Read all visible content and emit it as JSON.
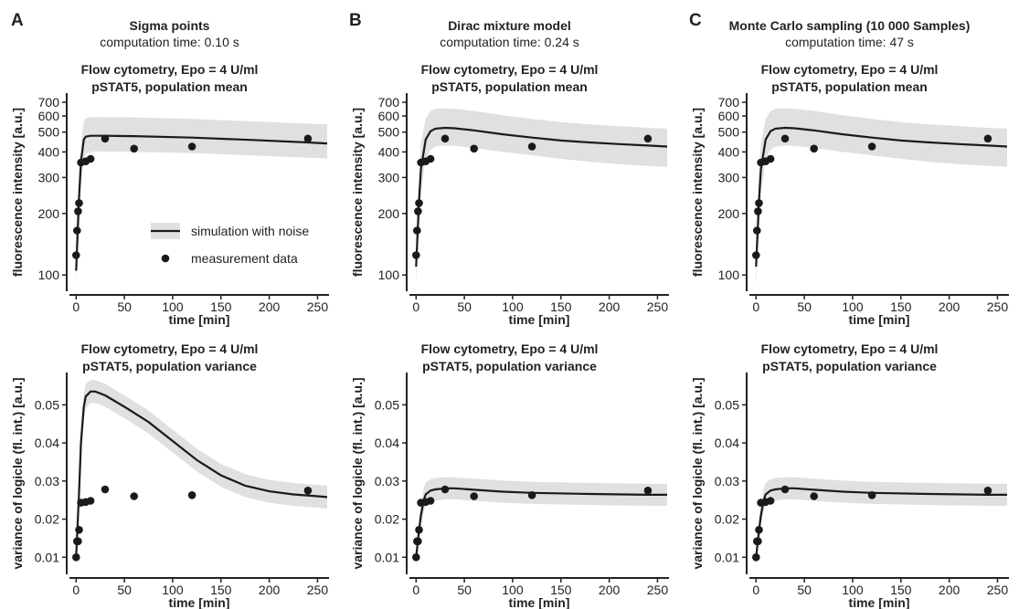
{
  "columns": [
    {
      "letter": "A",
      "title": "Sigma points",
      "subtitle": "computation time: 0.10 s"
    },
    {
      "letter": "B",
      "title": "Dirac mixture model",
      "subtitle": "computation time: 0.24 s"
    },
    {
      "letter": "C",
      "title": "Monte Carlo sampling (10 000 Samples)",
      "subtitle": "computation time: 47 s"
    }
  ],
  "legend": {
    "line_label": "simulation with noise",
    "dots_label": "measurement data"
  },
  "colors": {
    "line": "#1a1a1a",
    "band": "#e0e0e2",
    "points": "#1a1a1a"
  },
  "chart_data": [
    {
      "id": "A-mean",
      "type": "line",
      "title_lines": [
        "Flow cytometry, Epo = 4 U/ml",
        "pSTAT5, population mean"
      ],
      "xlabel": "time [min]",
      "ylabel": "fluorescence intensity [a.u.]",
      "yscale": "log",
      "xlim": [
        -5,
        260
      ],
      "ylim": [
        85,
        760
      ],
      "xticks": [
        0,
        50,
        100,
        150,
        200,
        250
      ],
      "yticks": [
        100,
        200,
        300,
        400,
        500,
        600,
        700
      ],
      "series": [
        {
          "kind": "band",
          "x": [
            0,
            3,
            5,
            8,
            10,
            15,
            20,
            30,
            60,
            120,
            180,
            240,
            260
          ],
          "lower": [
            90,
            175,
            270,
            370,
            392,
            400,
            402,
            402,
            400,
            395,
            385,
            375,
            372
          ],
          "upper": [
            160,
            300,
            430,
            560,
            585,
            590,
            592,
            592,
            590,
            580,
            565,
            550,
            545
          ]
        },
        {
          "kind": "line",
          "x": [
            0,
            3,
            5,
            8,
            10,
            15,
            20,
            30,
            60,
            120,
            180,
            240,
            260
          ],
          "y": [
            105,
            240,
            360,
            460,
            475,
            480,
            480,
            480,
            478,
            470,
            458,
            445,
            440
          ]
        },
        {
          "kind": "points",
          "x": [
            0,
            1,
            2,
            3,
            5,
            10,
            15,
            30,
            60,
            120,
            240
          ],
          "y": [
            125,
            165,
            205,
            225,
            355,
            360,
            370,
            465,
            415,
            425,
            465
          ]
        }
      ]
    },
    {
      "id": "B-mean",
      "type": "line",
      "title_lines": [
        "Flow cytometry, Epo = 4 U/ml",
        "pSTAT5, population mean"
      ],
      "xlabel": "time [min]",
      "ylabel": "fluorescence intensity [a.u.]",
      "yscale": "log",
      "xlim": [
        -5,
        260
      ],
      "ylim": [
        85,
        760
      ],
      "xticks": [
        0,
        50,
        100,
        150,
        200,
        250
      ],
      "yticks": [
        100,
        200,
        300,
        400,
        500,
        600,
        700
      ],
      "series": [
        {
          "kind": "band",
          "x": [
            0,
            3,
            5,
            10,
            15,
            20,
            30,
            40,
            60,
            90,
            120,
            150,
            180,
            210,
            240,
            260
          ],
          "lower": [
            90,
            170,
            250,
            370,
            410,
            425,
            430,
            428,
            418,
            400,
            385,
            370,
            358,
            348,
            342,
            338
          ],
          "upper": [
            140,
            320,
            440,
            580,
            635,
            650,
            655,
            650,
            635,
            605,
            580,
            560,
            545,
            535,
            525,
            520
          ]
        },
        {
          "kind": "line",
          "x": [
            0,
            3,
            5,
            10,
            15,
            20,
            30,
            40,
            60,
            90,
            120,
            150,
            180,
            210,
            240,
            260
          ],
          "y": [
            110,
            230,
            330,
            460,
            505,
            520,
            525,
            522,
            510,
            488,
            470,
            455,
            445,
            437,
            430,
            425
          ]
        },
        {
          "kind": "points",
          "x": [
            0,
            1,
            2,
            3,
            5,
            10,
            15,
            30,
            60,
            120,
            240
          ],
          "y": [
            125,
            165,
            205,
            225,
            355,
            360,
            370,
            465,
            415,
            425,
            465
          ]
        }
      ]
    },
    {
      "id": "C-mean",
      "type": "line",
      "title_lines": [
        "Flow cytometry, Epo = 4 U/ml",
        "pSTAT5, population mean"
      ],
      "xlabel": "time [min]",
      "ylabel": "fluorescence intensity [a.u.]",
      "yscale": "log",
      "xlim": [
        -5,
        260
      ],
      "ylim": [
        85,
        760
      ],
      "xticks": [
        0,
        50,
        100,
        150,
        200,
        250
      ],
      "yticks": [
        100,
        200,
        300,
        400,
        500,
        600,
        700
      ],
      "series": [
        {
          "kind": "band",
          "x": [
            0,
            3,
            5,
            10,
            15,
            20,
            30,
            40,
            60,
            90,
            120,
            150,
            180,
            210,
            240,
            260
          ],
          "lower": [
            90,
            170,
            250,
            370,
            410,
            425,
            430,
            428,
            418,
            400,
            385,
            370,
            358,
            348,
            342,
            338
          ],
          "upper": [
            140,
            320,
            440,
            580,
            635,
            650,
            655,
            650,
            635,
            605,
            580,
            560,
            545,
            535,
            525,
            520
          ]
        },
        {
          "kind": "line",
          "x": [
            0,
            3,
            5,
            10,
            15,
            20,
            30,
            40,
            60,
            90,
            120,
            150,
            180,
            210,
            240,
            260
          ],
          "y": [
            110,
            230,
            330,
            460,
            505,
            520,
            525,
            522,
            510,
            488,
            470,
            455,
            445,
            437,
            430,
            425
          ]
        },
        {
          "kind": "points",
          "x": [
            0,
            1,
            2,
            3,
            5,
            10,
            15,
            30,
            60,
            120,
            240
          ],
          "y": [
            125,
            165,
            205,
            225,
            355,
            360,
            370,
            465,
            415,
            425,
            465
          ]
        }
      ]
    },
    {
      "id": "A-var",
      "type": "line",
      "title_lines": [
        "Flow cytometry, Epo = 4 U/ml",
        "pSTAT5, population variance"
      ],
      "xlabel": "time [min]",
      "ylabel": "variance of logicle (fl. int.) [a.u.]",
      "yscale": "linear",
      "xlim": [
        -5,
        260
      ],
      "ylim": [
        0.006,
        0.058
      ],
      "xticks": [
        0,
        50,
        100,
        150,
        200,
        250
      ],
      "yticks": [
        0.01,
        0.02,
        0.03,
        0.04,
        0.05
      ],
      "series": [
        {
          "kind": "band",
          "x": [
            0,
            3,
            5,
            8,
            10,
            15,
            20,
            30,
            50,
            75,
            100,
            125,
            150,
            175,
            200,
            225,
            250,
            260
          ],
          "lower": [
            0.007,
            0.022,
            0.035,
            0.046,
            0.049,
            0.0505,
            0.0505,
            0.0495,
            0.0465,
            0.0425,
            0.0375,
            0.0325,
            0.0285,
            0.0258,
            0.0243,
            0.0235,
            0.023,
            0.0228
          ],
          "upper": [
            0.013,
            0.032,
            0.045,
            0.053,
            0.0555,
            0.0565,
            0.0565,
            0.0555,
            0.0525,
            0.0485,
            0.0435,
            0.0385,
            0.0345,
            0.0318,
            0.0303,
            0.0295,
            0.029,
            0.0288
          ]
        },
        {
          "kind": "line",
          "x": [
            0,
            3,
            5,
            8,
            10,
            15,
            20,
            30,
            50,
            75,
            100,
            125,
            150,
            175,
            200,
            225,
            250,
            260
          ],
          "y": [
            0.01,
            0.027,
            0.04,
            0.0495,
            0.0522,
            0.0535,
            0.0535,
            0.0525,
            0.0495,
            0.0455,
            0.0405,
            0.0355,
            0.0315,
            0.0288,
            0.0273,
            0.0265,
            0.026,
            0.0258
          ]
        },
        {
          "kind": "points",
          "x": [
            0,
            1,
            2,
            3,
            5,
            10,
            15,
            30,
            60,
            120,
            240
          ],
          "y": [
            0.01,
            0.0142,
            0.0142,
            0.0172,
            0.0243,
            0.0245,
            0.0248,
            0.0278,
            0.026,
            0.0263,
            0.0275
          ]
        }
      ]
    },
    {
      "id": "B-var",
      "type": "line",
      "title_lines": [
        "Flow cytometry, Epo = 4 U/ml",
        "pSTAT5, population variance"
      ],
      "xlabel": "time [min]",
      "ylabel": "variance of logicle (fl. int.) [a.u.]",
      "yscale": "linear",
      "xlim": [
        -5,
        260
      ],
      "ylim": [
        0.006,
        0.058
      ],
      "xticks": [
        0,
        50,
        100,
        150,
        200,
        250
      ],
      "yticks": [
        0.01,
        0.02,
        0.03,
        0.04,
        0.05
      ],
      "series": [
        {
          "kind": "band",
          "x": [
            0,
            3,
            5,
            8,
            10,
            15,
            20,
            30,
            40,
            60,
            90,
            120,
            180,
            240,
            260
          ],
          "lower": [
            0.007,
            0.0145,
            0.0185,
            0.022,
            0.0235,
            0.0245,
            0.0248,
            0.0252,
            0.0252,
            0.0248,
            0.0243,
            0.024,
            0.0237,
            0.0235,
            0.0235
          ],
          "upper": [
            0.012,
            0.02,
            0.024,
            0.028,
            0.0295,
            0.0305,
            0.0308,
            0.031,
            0.031,
            0.0306,
            0.0301,
            0.0298,
            0.0295,
            0.0293,
            0.0293
          ]
        },
        {
          "kind": "line",
          "x": [
            0,
            3,
            5,
            8,
            10,
            15,
            20,
            30,
            40,
            60,
            90,
            120,
            180,
            240,
            260
          ],
          "y": [
            0.01,
            0.017,
            0.021,
            0.025,
            0.0265,
            0.0275,
            0.0278,
            0.0281,
            0.0281,
            0.0277,
            0.0272,
            0.0269,
            0.0266,
            0.0264,
            0.0264
          ]
        },
        {
          "kind": "points",
          "x": [
            0,
            1,
            2,
            3,
            5,
            10,
            15,
            30,
            60,
            120,
            240
          ],
          "y": [
            0.01,
            0.0142,
            0.0142,
            0.0172,
            0.0243,
            0.0245,
            0.0248,
            0.0278,
            0.026,
            0.0263,
            0.0275
          ]
        }
      ]
    },
    {
      "id": "C-var",
      "type": "line",
      "title_lines": [
        "Flow cytometry, Epo = 4 U/ml",
        "pSTAT5, population variance"
      ],
      "xlabel": "time [min]",
      "ylabel": "variance of logicle (fl. int.) [a.u.]",
      "yscale": "linear",
      "xlim": [
        -5,
        260
      ],
      "ylim": [
        0.006,
        0.058
      ],
      "xticks": [
        0,
        50,
        100,
        150,
        200,
        250
      ],
      "yticks": [
        0.01,
        0.02,
        0.03,
        0.04,
        0.05
      ],
      "series": [
        {
          "kind": "band",
          "x": [
            0,
            3,
            5,
            8,
            10,
            15,
            20,
            30,
            40,
            60,
            90,
            120,
            180,
            240,
            260
          ],
          "lower": [
            0.007,
            0.0145,
            0.0185,
            0.022,
            0.0235,
            0.0245,
            0.0248,
            0.0252,
            0.0252,
            0.0248,
            0.0243,
            0.024,
            0.0237,
            0.0235,
            0.0235
          ],
          "upper": [
            0.012,
            0.02,
            0.024,
            0.028,
            0.0295,
            0.0305,
            0.0308,
            0.031,
            0.031,
            0.0306,
            0.0301,
            0.0298,
            0.0295,
            0.0293,
            0.0293
          ]
        },
        {
          "kind": "line",
          "x": [
            0,
            3,
            5,
            8,
            10,
            15,
            20,
            30,
            40,
            60,
            90,
            120,
            180,
            240,
            260
          ],
          "y": [
            0.01,
            0.017,
            0.021,
            0.025,
            0.0265,
            0.0275,
            0.0278,
            0.0281,
            0.0281,
            0.0277,
            0.0272,
            0.0269,
            0.0266,
            0.0264,
            0.0264
          ]
        },
        {
          "kind": "points",
          "x": [
            0,
            1,
            2,
            3,
            5,
            10,
            15,
            30,
            60,
            120,
            240
          ],
          "y": [
            0.01,
            0.0142,
            0.0142,
            0.0172,
            0.0243,
            0.0245,
            0.0248,
            0.0278,
            0.026,
            0.0263,
            0.0275
          ]
        }
      ]
    }
  ]
}
